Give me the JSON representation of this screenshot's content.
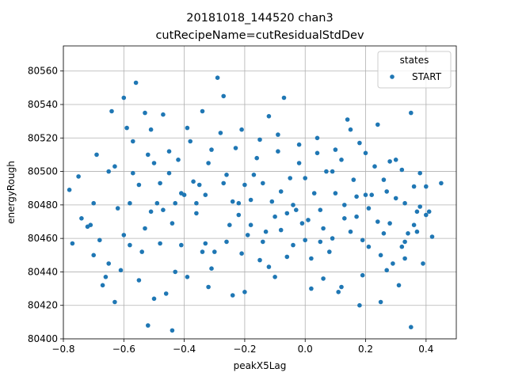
{
  "chart_data": {
    "type": "scatter",
    "title": "20181018_144520 chan3",
    "subtitle": "cutRecipeName=cutResidualStdDev",
    "xlabel": "peakX5Lag",
    "ylabel": "energyRough",
    "xlim": [
      -0.8,
      0.5
    ],
    "ylim": [
      80400,
      80575
    ],
    "x_ticks": [
      -0.8,
      -0.6,
      -0.4,
      -0.2,
      0.0,
      0.2,
      0.4
    ],
    "x_tick_labels": [
      "−0.8",
      "−0.6",
      "−0.4",
      "−0.2",
      "0.0",
      "0.2",
      "0.4"
    ],
    "y_ticks": [
      80400,
      80420,
      80440,
      80460,
      80480,
      80500,
      80520,
      80540,
      80560
    ],
    "y_tick_labels": [
      "80400",
      "80420",
      "80440",
      "80460",
      "80480",
      "80500",
      "80520",
      "80540",
      "80560"
    ],
    "grid": true,
    "legend": {
      "title": "states",
      "placement": "top-right"
    },
    "series": [
      {
        "name": "START",
        "color": "#1f77b4",
        "points": [
          [
            -0.78,
            80489
          ],
          [
            -0.77,
            80457
          ],
          [
            -0.75,
            80497
          ],
          [
            -0.74,
            80472
          ],
          [
            -0.71,
            80468
          ],
          [
            -0.72,
            80467
          ],
          [
            -0.7,
            80481
          ],
          [
            -0.69,
            80510
          ],
          [
            -0.68,
            80459
          ],
          [
            -0.67,
            80432
          ],
          [
            -0.65,
            80445
          ],
          [
            -0.65,
            80500
          ],
          [
            -0.64,
            80536
          ],
          [
            -0.63,
            80422
          ],
          [
            -0.62,
            80478
          ],
          [
            -0.61,
            80441
          ],
          [
            -0.6,
            80544
          ],
          [
            -0.59,
            80526
          ],
          [
            -0.58,
            80481
          ],
          [
            -0.57,
            80499
          ],
          [
            -0.56,
            80553
          ],
          [
            -0.55,
            80492
          ],
          [
            -0.54,
            80452
          ],
          [
            -0.53,
            80535
          ],
          [
            -0.52,
            80510
          ],
          [
            -0.51,
            80476
          ],
          [
            -0.5,
            80424
          ],
          [
            -0.5,
            80505
          ],
          [
            -0.49,
            80481
          ],
          [
            -0.48,
            80457
          ],
          [
            -0.47,
            80534
          ],
          [
            -0.46,
            80427
          ],
          [
            -0.45,
            80499
          ],
          [
            -0.44,
            80469
          ],
          [
            -0.43,
            80481
          ],
          [
            -0.42,
            80507
          ],
          [
            -0.41,
            80487
          ],
          [
            -0.4,
            80486
          ],
          [
            -0.39,
            80437
          ],
          [
            -0.38,
            80518
          ],
          [
            -0.37,
            80494
          ],
          [
            -0.36,
            80475
          ],
          [
            -0.35,
            80492
          ],
          [
            -0.34,
            80452
          ],
          [
            -0.33,
            80486
          ],
          [
            -0.32,
            80505
          ],
          [
            -0.31,
            80513
          ],
          [
            -0.3,
            80452
          ],
          [
            -0.29,
            80556
          ],
          [
            -0.28,
            80523
          ],
          [
            -0.27,
            80493
          ],
          [
            -0.26,
            80498
          ],
          [
            -0.25,
            80468
          ],
          [
            -0.24,
            80482
          ],
          [
            -0.23,
            80514
          ],
          [
            -0.22,
            80481
          ],
          [
            -0.21,
            80451
          ],
          [
            -0.2,
            80492
          ],
          [
            -0.19,
            80462
          ],
          [
            -0.18,
            80483
          ],
          [
            -0.17,
            80498
          ],
          [
            -0.16,
            80508
          ],
          [
            -0.15,
            80447
          ],
          [
            -0.14,
            80493
          ],
          [
            -0.13,
            80464
          ],
          [
            -0.12,
            80533
          ],
          [
            -0.11,
            80482
          ],
          [
            -0.1,
            80473
          ],
          [
            -0.09,
            80512
          ],
          [
            -0.08,
            80488
          ],
          [
            -0.07,
            80544
          ],
          [
            -0.06,
            80475
          ],
          [
            -0.05,
            80496
          ],
          [
            -0.04,
            80456
          ],
          [
            -0.03,
            80477
          ],
          [
            -0.02,
            80505
          ],
          [
            -0.01,
            80469
          ],
          [
            0.0,
            80496
          ],
          [
            0.01,
            80471
          ],
          [
            0.02,
            80448
          ],
          [
            0.03,
            80487
          ],
          [
            0.04,
            80511
          ],
          [
            0.05,
            80477
          ],
          [
            0.06,
            80466
          ],
          [
            0.07,
            80500
          ],
          [
            0.08,
            80452
          ],
          [
            0.09,
            80500
          ],
          [
            0.1,
            80487
          ],
          [
            0.11,
            80428
          ],
          [
            0.12,
            80507
          ],
          [
            0.13,
            80480
          ],
          [
            0.14,
            80531
          ],
          [
            0.15,
            80464
          ],
          [
            0.16,
            80495
          ],
          [
            0.17,
            80473
          ],
          [
            0.18,
            80517
          ],
          [
            0.19,
            80459
          ],
          [
            0.2,
            80486
          ],
          [
            0.21,
            80455
          ],
          [
            0.22,
            80486
          ],
          [
            0.23,
            80503
          ],
          [
            0.24,
            80470
          ],
          [
            0.25,
            80450
          ],
          [
            0.26,
            80463
          ],
          [
            0.27,
            80488
          ],
          [
            0.28,
            80469
          ],
          [
            0.29,
            80445
          ],
          [
            0.3,
            80484
          ],
          [
            0.31,
            80432
          ],
          [
            0.32,
            80455
          ],
          [
            0.33,
            80458
          ],
          [
            0.34,
            80463
          ],
          [
            0.35,
            80535
          ],
          [
            0.36,
            80491
          ],
          [
            0.37,
            80464
          ],
          [
            0.38,
            80479
          ],
          [
            0.39,
            80445
          ],
          [
            0.4,
            80491
          ],
          [
            0.41,
            80476
          ],
          [
            0.42,
            80461
          ],
          [
            0.45,
            80493
          ],
          [
            -0.44,
            80405
          ],
          [
            -0.52,
            80408
          ],
          [
            0.35,
            80407
          ],
          [
            -0.2,
            80428
          ],
          [
            0.18,
            80420
          ],
          [
            0.25,
            80422
          ],
          [
            -0.1,
            80437
          ],
          [
            0.02,
            80430
          ],
          [
            -0.33,
            80457
          ],
          [
            -0.58,
            80456
          ],
          [
            -0.48,
            80493
          ],
          [
            -0.66,
            80437
          ],
          [
            -0.6,
            80462
          ],
          [
            -0.53,
            80466
          ],
          [
            -0.47,
            80477
          ],
          [
            -0.41,
            80456
          ],
          [
            -0.36,
            80481
          ],
          [
            -0.31,
            80442
          ],
          [
            -0.26,
            80458
          ],
          [
            -0.22,
            80474
          ],
          [
            -0.18,
            80468
          ],
          [
            -0.14,
            80458
          ],
          [
            -0.08,
            80465
          ],
          [
            -0.04,
            80480
          ],
          [
            0.0,
            80459
          ],
          [
            0.05,
            80458
          ],
          [
            0.09,
            80460
          ],
          [
            0.13,
            80472
          ],
          [
            0.17,
            80485
          ],
          [
            0.21,
            80478
          ],
          [
            0.26,
            80495
          ],
          [
            0.3,
            80507
          ],
          [
            0.33,
            80481
          ],
          [
            0.37,
            80476
          ],
          [
            0.4,
            80474
          ],
          [
            -0.7,
            80450
          ],
          [
            -0.63,
            80503
          ],
          [
            -0.57,
            80518
          ],
          [
            -0.51,
            80525
          ],
          [
            -0.45,
            80512
          ],
          [
            -0.39,
            80526
          ],
          [
            -0.34,
            80536
          ],
          [
            -0.27,
            80545
          ],
          [
            -0.21,
            80525
          ],
          [
            -0.15,
            80519
          ],
          [
            -0.09,
            80522
          ],
          [
            -0.02,
            80516
          ],
          [
            0.04,
            80520
          ],
          [
            0.1,
            80513
          ],
          [
            0.15,
            80525
          ],
          [
            0.2,
            80511
          ],
          [
            0.24,
            80528
          ],
          [
            0.28,
            80506
          ],
          [
            0.32,
            80501
          ],
          [
            0.38,
            80499
          ],
          [
            -0.55,
            80435
          ],
          [
            -0.43,
            80440
          ],
          [
            -0.32,
            80431
          ],
          [
            -0.24,
            80426
          ],
          [
            -0.12,
            80443
          ],
          [
            -0.06,
            80449
          ],
          [
            0.06,
            80436
          ],
          [
            0.12,
            80431
          ],
          [
            0.19,
            80438
          ],
          [
            0.27,
            80441
          ],
          [
            0.36,
            80468
          ],
          [
            0.33,
            80448
          ]
        ]
      }
    ]
  }
}
